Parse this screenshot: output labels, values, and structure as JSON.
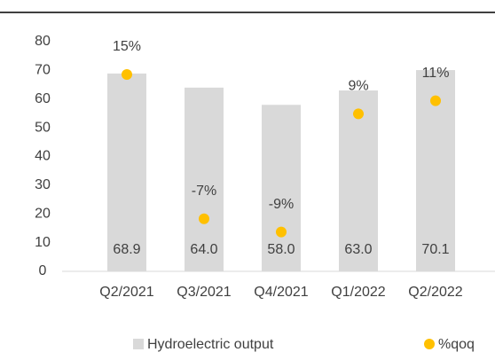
{
  "chart_data": {
    "type": "bar",
    "categories": [
      "Q2/2021",
      "Q3/2021",
      "Q4/2021",
      "Q1/2022",
      "Q2/2022"
    ],
    "series": [
      {
        "name": "Hydroelectric output",
        "type": "bar",
        "color": "#d9d9d9",
        "values": [
          68.9,
          64.0,
          58.0,
          63.0,
          70.1
        ],
        "value_labels": [
          "68.9",
          "64.0",
          "58.0",
          "63.0",
          "70.1"
        ]
      },
      {
        "name": "%qoq",
        "type": "scatter",
        "color": "#ffc000",
        "axis": "y2",
        "values": [
          15,
          -7,
          -9,
          9,
          11
        ],
        "value_labels": [
          "15%",
          "-7%",
          "-9%",
          "9%",
          "11%"
        ]
      }
    ],
    "ylim": [
      0,
      80
    ],
    "yticks": [
      0,
      10,
      20,
      30,
      40,
      50,
      60,
      70,
      80
    ],
    "y2lim": [
      -15,
      20
    ],
    "legend": "bottom"
  }
}
